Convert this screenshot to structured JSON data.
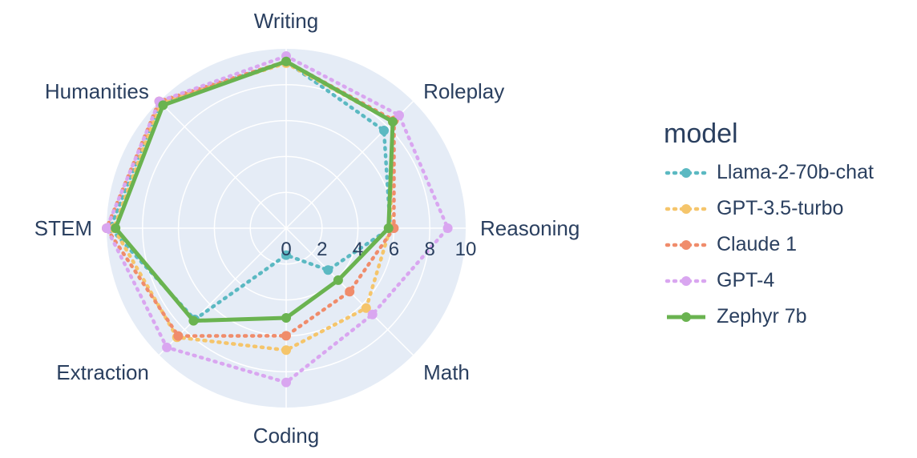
{
  "chart_data": {
    "type": "radar",
    "axes": [
      "Writing",
      "Roleplay",
      "Reasoning",
      "Math",
      "Coding",
      "Extraction",
      "STEM",
      "Humanities"
    ],
    "radial_ticks": [
      "0",
      "2",
      "4",
      "6",
      "8",
      "10"
    ],
    "rlim": [
      0,
      10
    ],
    "legend_title": "model",
    "legend_position": "right",
    "series": [
      {
        "name": "Llama-2-70b-chat",
        "color": "#5bb9c2",
        "dash": "dot",
        "values": [
          9.3,
          7.7,
          5.8,
          3.3,
          1.5,
          7.2,
          9.8,
          9.9
        ]
      },
      {
        "name": "GPT-3.5-turbo",
        "color": "#f5c56b",
        "dash": "dot",
        "values": [
          9.2,
          8.4,
          5.8,
          6.3,
          6.8,
          8.6,
          9.6,
          9.9
        ]
      },
      {
        "name": "Claude 1",
        "color": "#f08c6b",
        "dash": "dot",
        "values": [
          9.3,
          8.5,
          6.0,
          5.0,
          6.0,
          8.5,
          10.0,
          10.0
        ]
      },
      {
        "name": "GPT-4",
        "color": "#d9a6f0",
        "dash": "dot",
        "values": [
          9.6,
          8.9,
          9.0,
          6.8,
          8.6,
          9.4,
          10.0,
          10.0
        ]
      },
      {
        "name": "Zephyr 7b",
        "color": "#6ab350",
        "dash": "solid",
        "values": [
          9.3,
          8.4,
          5.7,
          4.1,
          5.0,
          7.3,
          9.5,
          9.7
        ]
      }
    ]
  }
}
